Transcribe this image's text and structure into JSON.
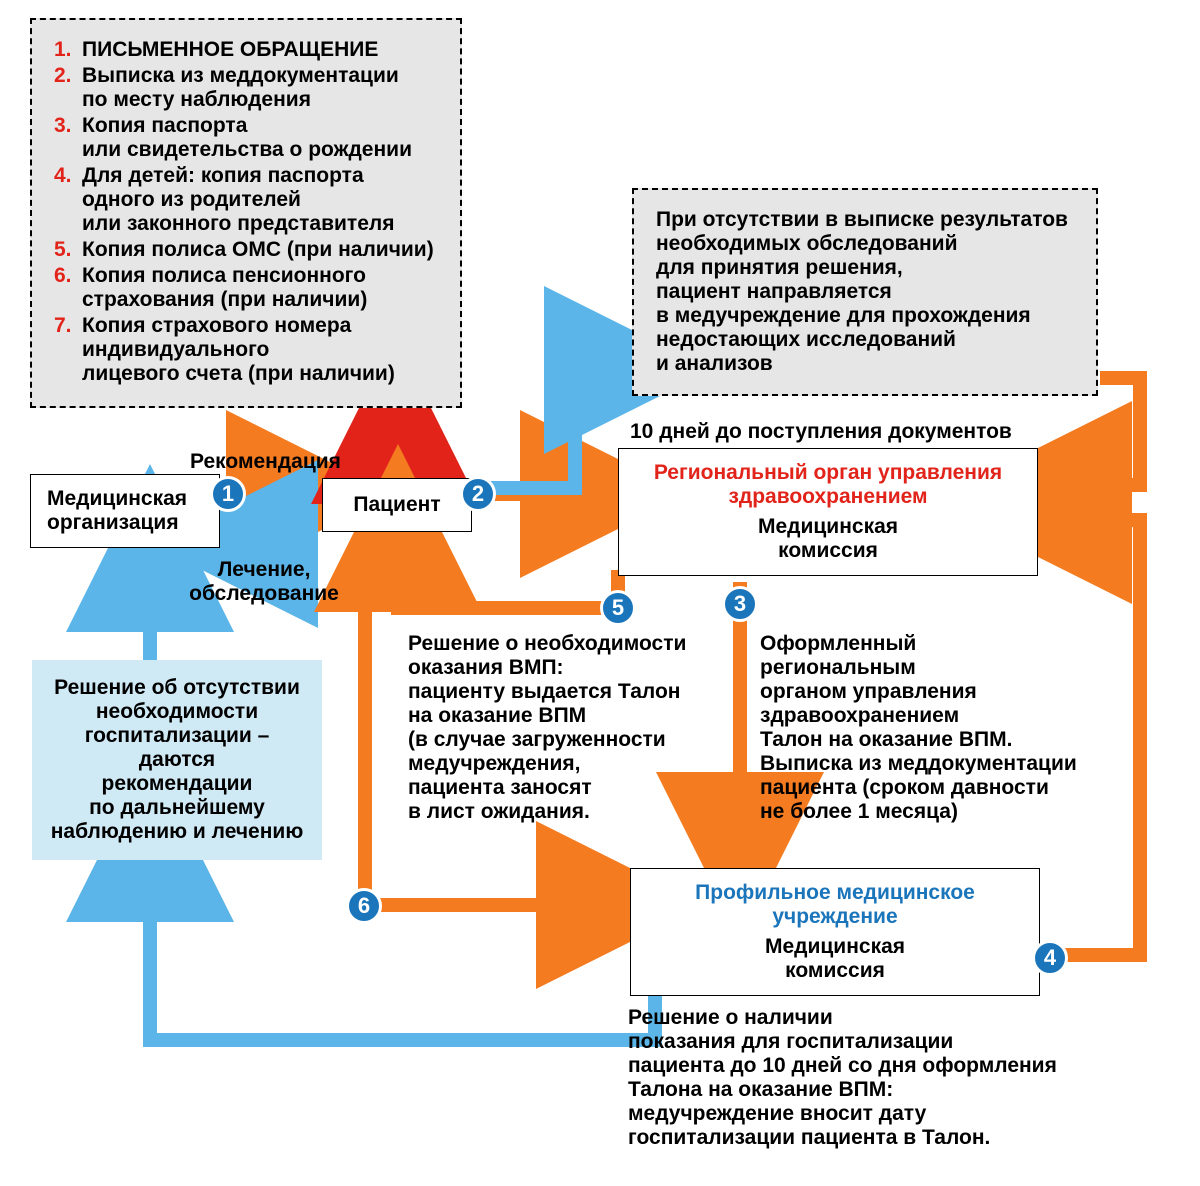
{
  "colors": {
    "orange": "#f47b20",
    "blue": "#5bb5e8",
    "red": "#e2231a",
    "circle": "#1b75bb",
    "gray_fill": "#e6e6e6",
    "lightblue_fill": "#cfe9f5",
    "black": "#000000",
    "white": "#ffffff"
  },
  "arrow_thickness": 14,
  "boxes": {
    "med_org": "Медицинская\nорганизация",
    "patient": "Пациент",
    "regional": {
      "title": "Региональный орган\nуправления здравоохранением",
      "sub": "Медицинская\nкомиссия"
    },
    "profile": {
      "title": "Профильное медицинское\nучреждение",
      "sub": "Медицинская\nкомиссия"
    }
  },
  "dashed_docs": [
    {
      "n": "1.",
      "t": "ПИСЬМЕННОЕ ОБРАЩЕНИЕ"
    },
    {
      "n": "2.",
      "t": "Выписка из меддокументации\nпо месту наблюдения"
    },
    {
      "n": "3.",
      "t": "Копия паспорта\nили свидетельства о рождении"
    },
    {
      "n": "4.",
      "t": "Для детей: копия паспорта\nодного из родителей\nили законного представителя"
    },
    {
      "n": "5.",
      "t": "Копия полиса ОМС (при наличии)"
    },
    {
      "n": "6.",
      "t": "Копия полиса пенсионного\nстрахования (при наличии)"
    },
    {
      "n": "7.",
      "t": "Копия страхового номера\nиндивидуального\nлицевого счета (при наличии)"
    }
  ],
  "dashed_note": "При отсутствии в выписке результатов\nнеобходимых обследований\nдля принятия решения,\nпациент направляется\nв медучреждение для прохождения\nнедостающих исследований\nи анализов",
  "bluebox": "Решение об отсутствии\nнеобходимости\nгоспитализации – даются\nрекомендации\nпо дальнейшему\nнаблюдению и лечению",
  "labels": {
    "recommendation": "Рекомендация",
    "treatment": "Лечение,\nобследование",
    "ten_days": "10 дней до поступления документов"
  },
  "text5": "Решение о необходимости\nоказания ВМП:\nпациенту выдается Талон\nна оказание ВПМ\n(в случае загруженности\nмедучреждения,\nпациента заносят\nв лист ожидания.",
  "text3": "Оформленный\nрегиональным\nорганом управления\nздравоохранением\nТалон на оказание ВПМ.\nВыписка из меддокументации\nпациента (сроком давности\nне более 1 месяца)",
  "text4": "Решение о наличии\nпоказания для госпитализации\nпациента до 10 дней со дня оформления\nТалона на оказание ВПМ:\nмедучреждение вносит дату\nгоспитализации пациента в Талон.",
  "circles": {
    "1": "1",
    "2": "2",
    "3": "3",
    "4": "4",
    "5": "5",
    "6": "6"
  }
}
